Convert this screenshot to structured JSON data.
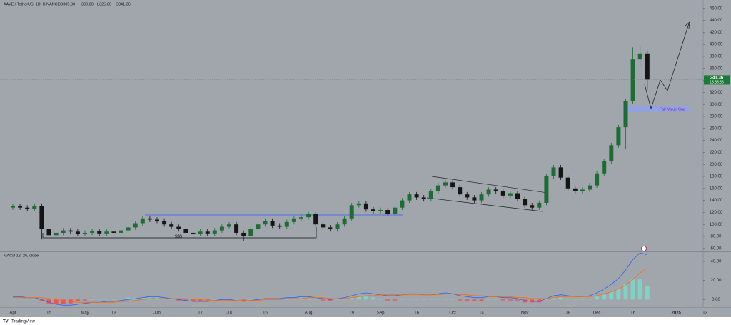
{
  "chart_data": [
    {
      "type": "candlestick",
      "title": "AAVE / TetherUS, 1D, BINANCE",
      "legend_values": [
        "O385.00",
        "H390.00",
        "L325.00",
        "C341.36"
      ],
      "countdown": "13:38:36",
      "annotations": [
        "$$$",
        "Fair Value Gap"
      ],
      "categories": [
        "Apr",
        null,
        null,
        null,
        null,
        "15",
        null,
        null,
        null,
        null,
        "May",
        null,
        null,
        null,
        "13",
        null,
        null,
        null,
        null,
        null,
        "Jun",
        null,
        null,
        null,
        null,
        null,
        "17",
        null,
        null,
        null,
        "Jul",
        null,
        null,
        null,
        null,
        "15",
        null,
        null,
        null,
        null,
        null,
        "Aug",
        null,
        null,
        null,
        null,
        null,
        "19",
        null,
        null,
        null,
        "Sep",
        null,
        null,
        null,
        null,
        "16",
        null,
        null,
        null,
        null,
        "Oct",
        null,
        null,
        null,
        "14",
        null,
        null,
        null,
        null,
        null,
        "Nov",
        null,
        null,
        null,
        null,
        null,
        "18",
        null,
        null,
        null,
        "Dec",
        null,
        null,
        null,
        null,
        "16",
        null,
        null,
        null,
        null,
        null,
        "2025",
        null,
        null,
        null,
        "13"
      ],
      "open": [
        128,
        130,
        128,
        126,
        131,
        92,
        82,
        86,
        90,
        88,
        84,
        86,
        89,
        85,
        88,
        86,
        90,
        95,
        102,
        110,
        108,
        106,
        100,
        96,
        92,
        86,
        84,
        88,
        85,
        90,
        96,
        100,
        86,
        80,
        92,
        100,
        106,
        98,
        96,
        104,
        110,
        112,
        117,
        100,
        95,
        92,
        100,
        110,
        132,
        135,
        125,
        122,
        124,
        118,
        128,
        140,
        150,
        145,
        142,
        155,
        165,
        170,
        162,
        150,
        145,
        140,
        150,
        158,
        155,
        148,
        152,
        142,
        132,
        128,
        136,
        180,
        195,
        178,
        160,
        155,
        158,
        165,
        185,
        205,
        232,
        262,
        305,
        375,
        385,
        null,
        null,
        null,
        null,
        null,
        null,
        null,
        null
      ],
      "high": [
        134,
        134,
        132,
        135,
        135,
        96,
        90,
        94,
        94,
        92,
        90,
        93,
        93,
        92,
        92,
        94,
        99,
        106,
        114,
        114,
        112,
        110,
        104,
        100,
        96,
        90,
        92,
        92,
        94,
        100,
        104,
        104,
        90,
        96,
        104,
        110,
        110,
        102,
        108,
        114,
        116,
        121,
        121,
        104,
        99,
        104,
        114,
        136,
        139,
        139,
        129,
        128,
        128,
        132,
        144,
        154,
        154,
        149,
        159,
        169,
        174,
        174,
        166,
        154,
        149,
        154,
        162,
        162,
        159,
        156,
        156,
        146,
        136,
        140,
        184,
        199,
        199,
        182,
        164,
        162,
        169,
        189,
        209,
        236,
        266,
        309,
        395,
        398,
        390,
        null,
        null,
        null,
        null,
        null,
        null,
        null,
        null
      ],
      "low": [
        124,
        124,
        122,
        122,
        75,
        78,
        78,
        82,
        84,
        80,
        80,
        82,
        81,
        81,
        82,
        82,
        86,
        91,
        98,
        104,
        102,
        96,
        92,
        88,
        82,
        80,
        80,
        81,
        81,
        86,
        92,
        82,
        72,
        76,
        88,
        96,
        94,
        92,
        92,
        100,
        106,
        108,
        96,
        91,
        88,
        88,
        96,
        106,
        128,
        121,
        118,
        118,
        114,
        114,
        124,
        136,
        141,
        138,
        138,
        151,
        161,
        158,
        146,
        141,
        136,
        136,
        146,
        151,
        144,
        144,
        138,
        128,
        124,
        124,
        132,
        176,
        174,
        156,
        151,
        151,
        154,
        161,
        181,
        201,
        228,
        225,
        301,
        365,
        325,
        null,
        null,
        null,
        null,
        null,
        null,
        null,
        null
      ],
      "close": [
        130,
        128,
        126,
        131,
        92,
        82,
        86,
        90,
        88,
        84,
        86,
        89,
        85,
        88,
        86,
        90,
        95,
        102,
        110,
        108,
        106,
        100,
        96,
        92,
        86,
        84,
        88,
        85,
        90,
        96,
        100,
        86,
        80,
        92,
        100,
        106,
        98,
        96,
        104,
        110,
        112,
        117,
        100,
        95,
        92,
        100,
        110,
        132,
        135,
        125,
        122,
        124,
        118,
        128,
        140,
        150,
        145,
        142,
        155,
        165,
        170,
        162,
        150,
        145,
        140,
        150,
        158,
        155,
        148,
        152,
        142,
        132,
        128,
        136,
        180,
        195,
        178,
        160,
        155,
        158,
        165,
        185,
        205,
        232,
        262,
        305,
        375,
        385,
        341.36,
        null,
        null,
        null,
        null,
        null,
        null,
        null,
        null
      ],
      "up_color": "#1f6b35",
      "down_color": "#151515",
      "ylim": [
        55,
        474
      ],
      "yticks": [
        {
          "value": 60,
          "label": "60.00"
        },
        {
          "value": 80,
          "label": "80.00"
        },
        {
          "value": 100,
          "label": "100.00"
        },
        {
          "value": 120,
          "label": "120.00"
        },
        {
          "value": 140,
          "label": "140.00"
        },
        {
          "value": 160,
          "label": "160.00"
        },
        {
          "value": 180,
          "label": "180.00"
        },
        {
          "value": 200,
          "label": "200.00"
        },
        {
          "value": 220,
          "label": "220.00"
        },
        {
          "value": 240,
          "label": "240.00"
        },
        {
          "value": 260,
          "label": "260.00"
        },
        {
          "value": 280,
          "label": "280.00"
        },
        {
          "value": 300,
          "label": "300.00"
        },
        {
          "value": 320,
          "label": "320.00"
        },
        {
          "value": 340,
          "label": "340.00"
        },
        {
          "value": 360,
          "label": "360.00"
        },
        {
          "value": 380,
          "label": "380.00"
        },
        {
          "value": 400,
          "label": "400.00"
        },
        {
          "value": 420,
          "label": "420.00"
        },
        {
          "value": 440,
          "label": "440.00"
        },
        {
          "value": 460,
          "label": "460.00"
        }
      ],
      "grid": false
    },
    {
      "type": "macd",
      "title": "MACD 12, 26, close",
      "series": [
        {
          "name": "MACD",
          "color": "#2962ff",
          "values": [
            3,
            3,
            2,
            2,
            0,
            -3,
            -5,
            -6,
            -6,
            -5,
            -4,
            -3,
            -3,
            -2,
            -2,
            -1,
            0,
            1,
            2,
            3,
            3,
            2,
            1,
            0,
            -1,
            -2,
            -2,
            -2,
            -1,
            0,
            0,
            -1,
            -2,
            -1,
            0,
            1,
            1,
            1,
            2,
            2,
            3,
            3,
            2,
            1,
            0,
            1,
            2,
            4,
            6,
            7,
            6,
            5,
            4,
            4,
            5,
            6,
            6,
            5,
            5,
            6,
            7,
            6,
            4,
            3,
            2,
            2,
            3,
            3,
            2,
            2,
            1,
            -1,
            -2,
            -2,
            1,
            4,
            5,
            4,
            3,
            3,
            4,
            7,
            11,
            16,
            22,
            31,
            42,
            49,
            47,
            null,
            null,
            null,
            null,
            null,
            null,
            null,
            null
          ]
        },
        {
          "name": "Signal",
          "color": "#ff6d00",
          "values": [
            2,
            2,
            2,
            2,
            2,
            1,
            0,
            -1,
            -2,
            -3,
            -3,
            -3,
            -3,
            -3,
            -3,
            -2,
            -2,
            -1,
            0,
            1,
            1,
            1,
            1,
            1,
            1,
            0,
            0,
            -1,
            -1,
            -1,
            -1,
            -1,
            -1,
            -1,
            -1,
            0,
            0,
            0,
            1,
            1,
            1,
            2,
            2,
            2,
            1,
            1,
            1,
            2,
            3,
            4,
            4,
            5,
            5,
            5,
            5,
            5,
            5,
            5,
            5,
            5,
            6,
            6,
            5,
            5,
            4,
            4,
            3,
            3,
            3,
            3,
            2,
            2,
            1,
            1,
            1,
            2,
            3,
            3,
            3,
            3,
            3,
            4,
            6,
            8,
            11,
            15,
            21,
            28,
            33,
            null,
            null,
            null,
            null,
            null,
            null,
            null,
            null
          ]
        }
      ],
      "histogram": {
        "up_color": "#7fd3c4",
        "down_color": "#ef5350",
        "values": [
          1,
          1,
          0,
          0,
          -2,
          -4,
          -5,
          -5,
          -4,
          -2,
          -1,
          0,
          0,
          1,
          1,
          1,
          2,
          2,
          2,
          2,
          2,
          1,
          0,
          -1,
          -2,
          -2,
          -2,
          -1,
          0,
          1,
          1,
          0,
          -1,
          0,
          1,
          1,
          1,
          1,
          1,
          1,
          2,
          1,
          0,
          -1,
          -1,
          0,
          1,
          2,
          3,
          3,
          2,
          0,
          -1,
          -1,
          0,
          1,
          1,
          0,
          0,
          1,
          1,
          0,
          -1,
          -2,
          -2,
          -2,
          0,
          0,
          -1,
          -1,
          -1,
          -3,
          -3,
          -3,
          0,
          2,
          2,
          1,
          0,
          0,
          1,
          3,
          5,
          8,
          11,
          16,
          21,
          21,
          14,
          null,
          null,
          null,
          null,
          null,
          null,
          null,
          null
        ]
      },
      "ylim": [
        -8,
        49
      ],
      "yticks": [
        {
          "value": 0,
          "label": "0.00"
        },
        {
          "value": 20,
          "label": "20.00"
        },
        {
          "value": 40,
          "label": "40.00"
        }
      ]
    }
  ],
  "footer": "TradingView"
}
